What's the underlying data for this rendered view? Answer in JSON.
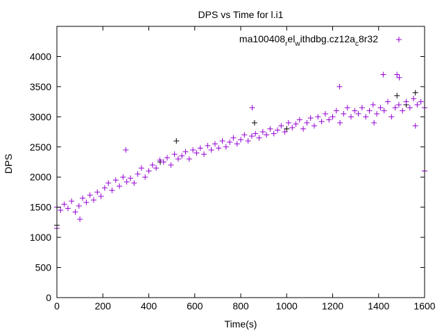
{
  "chart_data": {
    "type": "scatter",
    "title": "DPS vs Time for l.i1",
    "xlabel": "Time(s)",
    "ylabel": "DPS",
    "xlim": [
      0,
      1600
    ],
    "ylim": [
      0,
      4500
    ],
    "xticks": [
      0,
      200,
      400,
      600,
      800,
      1000,
      1200,
      1400,
      1600
    ],
    "yticks": [
      0,
      500,
      1000,
      1500,
      2000,
      2500,
      3000,
      3500,
      4000
    ],
    "grid": false,
    "legend_position": "top-right",
    "legend_parts": [
      "ma100408",
      "r",
      "el",
      "w",
      "ithdbg.cz12a",
      "c",
      "8r32"
    ],
    "series": [
      {
        "name": "ma100408_rel_withdbg.cz12a_c8r32",
        "color": "#9400d3",
        "marker": "plus",
        "x": [
          0,
          16,
          32,
          48,
          64,
          80,
          96,
          112,
          128,
          144,
          160,
          176,
          192,
          208,
          224,
          240,
          256,
          272,
          288,
          304,
          320,
          336,
          352,
          368,
          384,
          400,
          416,
          432,
          448,
          464,
          480,
          496,
          512,
          528,
          544,
          560,
          576,
          592,
          608,
          624,
          640,
          656,
          672,
          688,
          704,
          720,
          736,
          752,
          768,
          784,
          800,
          816,
          832,
          848,
          864,
          880,
          896,
          912,
          928,
          944,
          960,
          976,
          992,
          1008,
          1024,
          1040,
          1056,
          1072,
          1088,
          1104,
          1120,
          1136,
          1152,
          1168,
          1184,
          1200,
          1216,
          1232,
          1248,
          1264,
          1280,
          1296,
          1312,
          1328,
          1344,
          1360,
          1376,
          1392,
          1408,
          1424,
          1440,
          1456,
          1472,
          1488,
          1504,
          1520,
          1536,
          1552,
          1568,
          1584,
          1600,
          0,
          100,
          300,
          850,
          1230,
          1420,
          1480,
          1490,
          1600,
          1380,
          1560
        ],
        "y": [
          1500,
          1450,
          1550,
          1480,
          1600,
          1420,
          1520,
          1650,
          1580,
          1700,
          1620,
          1750,
          1680,
          1820,
          1900,
          1780,
          1950,
          1850,
          2000,
          1920,
          1980,
          1900,
          2050,
          2150,
          2000,
          2100,
          2200,
          2150,
          2280,
          2250,
          2320,
          2200,
          2380,
          2300,
          2350,
          2420,
          2300,
          2450,
          2400,
          2480,
          2380,
          2520,
          2450,
          2550,
          2480,
          2600,
          2500,
          2580,
          2650,
          2550,
          2620,
          2700,
          2600,
          2680,
          2720,
          2650,
          2750,
          2700,
          2800,
          2720,
          2780,
          2850,
          2750,
          2900,
          2820,
          2880,
          2950,
          2800,
          2900,
          2980,
          2850,
          3000,
          2920,
          3050,
          2950,
          3000,
          3100,
          2900,
          3050,
          3150,
          3000,
          3100,
          3050,
          3150,
          3000,
          3100,
          3200,
          3050,
          3150,
          3100,
          3250,
          3000,
          3150,
          3200,
          3100,
          3250,
          3150,
          3300,
          3200,
          3250,
          3150,
          1150,
          1300,
          2450,
          3150,
          3500,
          3700,
          3700,
          3650,
          2100,
          2900,
          2850
        ]
      },
      {
        "name": "",
        "color": "#000000",
        "marker": "plus",
        "x": [
          0,
          450,
          520,
          860,
          1000,
          1480,
          1520,
          1560
        ],
        "y": [
          1200,
          2250,
          2600,
          2900,
          2800,
          3350,
          3200,
          3400
        ]
      }
    ]
  }
}
